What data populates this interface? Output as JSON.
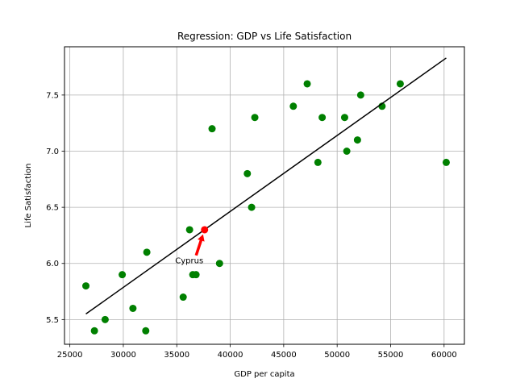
{
  "chart_data": {
    "type": "scatter",
    "title": "Regression: GDP vs Life Satisfaction",
    "xlabel": "GDP per capita",
    "ylabel": "Life Satisfaction",
    "xlim": [
      24500,
      61900
    ],
    "ylim": [
      5.28,
      7.93
    ],
    "xticks": [
      25000,
      30000,
      35000,
      40000,
      45000,
      50000,
      55000,
      60000
    ],
    "yticks": [
      5.5,
      6.0,
      6.5,
      7.0,
      7.5
    ],
    "grid": true,
    "colors": {
      "points": "#008000",
      "highlight": "#ff0000",
      "line": "#000000",
      "arrow": "#ff0000",
      "grid": "#b0b0b0"
    },
    "series": [
      {
        "type": "scatter",
        "points": [
          [
            26500,
            5.8
          ],
          [
            27300,
            5.4
          ],
          [
            28300,
            5.5
          ],
          [
            29900,
            5.9
          ],
          [
            30900,
            5.6
          ],
          [
            32100,
            5.4
          ],
          [
            32200,
            6.1
          ],
          [
            35600,
            5.7
          ],
          [
            36200,
            6.3
          ],
          [
            36500,
            5.9
          ],
          [
            36800,
            5.9
          ],
          [
            38300,
            7.2
          ],
          [
            39000,
            6.0
          ],
          [
            41600,
            6.8
          ],
          [
            42000,
            6.5
          ],
          [
            42300,
            7.3
          ],
          [
            45900,
            7.4
          ],
          [
            47200,
            7.6
          ],
          [
            48200,
            6.9
          ],
          [
            48600,
            7.3
          ],
          [
            50700,
            7.3
          ],
          [
            50900,
            7.0
          ],
          [
            51900,
            7.1
          ],
          [
            52200,
            7.5
          ],
          [
            54200,
            7.4
          ],
          [
            55900,
            7.6
          ],
          [
            60200,
            6.9
          ]
        ]
      },
      {
        "type": "highlight",
        "points": [
          [
            37600,
            6.3
          ]
        ]
      },
      {
        "type": "line",
        "points": [
          [
            26500,
            5.55
          ],
          [
            60200,
            7.83
          ]
        ]
      }
    ],
    "annotations": [
      {
        "text": "Cyprus",
        "xy": [
          37600,
          6.3
        ],
        "xytext": [
          35000,
          6.0
        ]
      }
    ]
  }
}
